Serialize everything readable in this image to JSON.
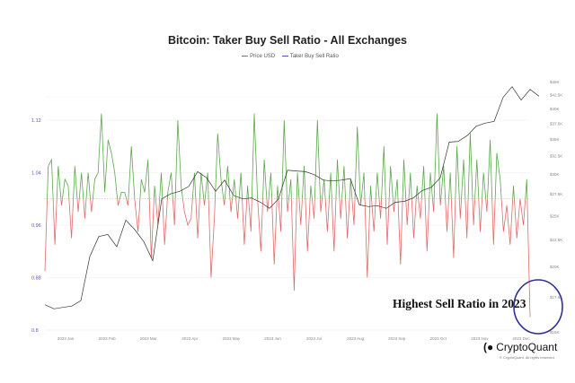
{
  "chart_data": {
    "type": "line",
    "title": "Bitcoin: Taker Buy Sell Ratio - All Exchanges",
    "legend": [
      "Price USD",
      "Taker Buy Sell Ratio"
    ],
    "legend_placement": "top-center",
    "x_tick_labels": [
      "2023 Jan",
      "2023 Feb",
      "2023 Mar",
      "2023 Apr",
      "2023 May",
      "2023 Jun",
      "2023 Jul",
      "2023 Aug",
      "2023 Sep",
      "2023 Oct",
      "2023 Nov",
      "2023 Dec"
    ],
    "left_axis": {
      "label": "Taker Buy Sell Ratio",
      "ticks": [
        "0.8",
        "0.88",
        "0.96",
        "1.04",
        "1.12"
      ],
      "ylim": [
        0.8,
        1.14
      ],
      "baseline": 1.0
    },
    "right_axis": {
      "label": "Price USD",
      "scale": "log",
      "ticks": [
        "$15K",
        "$17.5K",
        "$20K",
        "$22.5K",
        "$25K",
        "$27.5K",
        "$30K",
        "$32.5K",
        "$35K",
        "$37.5K",
        "$40K",
        "$42.5K",
        "$45K"
      ],
      "tick_values": [
        15,
        17.5,
        20,
        22.5,
        25,
        27.5,
        30,
        32.5,
        35,
        37.5,
        40,
        42.5,
        45
      ],
      "ylim_k": [
        15,
        45
      ]
    },
    "series": [
      {
        "name": "Price USD",
        "unit": "K USD",
        "color": "#333333",
        "values": [
          16.9,
          16.6,
          16.7,
          16.8,
          17.2,
          20.9,
          22.8,
          23.0,
          21.8,
          24.5,
          23.5,
          22.3,
          20.5,
          26.9,
          27.5,
          27.8,
          28.4,
          30.3,
          29.5,
          27.8,
          29.2,
          27.3,
          26.9,
          27.0,
          26.5,
          25.8,
          26.9,
          30.5,
          30.4,
          30.3,
          29.9,
          29.2,
          29.1,
          29.2,
          29.4,
          26.2,
          26.0,
          26.1,
          25.8,
          26.5,
          26.6,
          27.0,
          27.9,
          28.3,
          29.5,
          34.5,
          34.6,
          35.5,
          37.0,
          37.5,
          37.8,
          42.0,
          44.0,
          41.5,
          43.5,
          42.2
        ]
      },
      {
        "name": "Taker Buy Sell Ratio",
        "color_above": "#5aa84a",
        "color_below": "#e06a6a",
        "values": [
          0.89,
          1.05,
          1.06,
          0.93,
          1.05,
          0.99,
          1.03,
          1.02,
          0.94,
          1.05,
          0.98,
          1.04,
          0.97,
          1.04,
          0.98,
          1.03,
          1.04,
          1.13,
          1.01,
          1.09,
          1.07,
          1.04,
          0.99,
          1.01,
          1.01,
          0.99,
          1.08,
          1.0,
          0.95,
          1.03,
          1.01,
          1.06,
          0.91,
          1.02,
          0.96,
          1.04,
          0.93,
          1.01,
          1.04,
          0.96,
          1.12,
          1.02,
          0.98,
          0.96,
          0.97,
          1.04,
          0.94,
          1.04,
          0.99,
          1.04,
          0.88,
          0.97,
          1.1,
          1.03,
          0.99,
          1.05,
          0.98,
          1.03,
          0.97,
          1.04,
          0.93,
          1.02,
          0.95,
          1.13,
          1.0,
          0.92,
          1.06,
          0.98,
          1.04,
          0.9,
          1.02,
          0.95,
          1.12,
          0.98,
          1.03,
          0.86,
          1.04,
          0.96,
          1.05,
          0.92,
          1.02,
          0.97,
          1.12,
          0.98,
          1.03,
          0.95,
          1.04,
          0.92,
          1.06,
          0.97,
          1.05,
          0.94,
          1.03,
          0.96,
          1.11,
          0.99,
          1.04,
          0.88,
          1.02,
          0.95,
          1.04,
          0.97,
          1.08,
          0.93,
          1.05,
          0.98,
          1.03,
          0.9,
          1.06,
          0.96,
          1.04,
          0.94,
          1.02,
          0.97,
          1.05,
          0.92,
          1.04,
          0.98,
          1.13,
          0.99,
          1.05,
          0.95,
          1.04,
          0.91,
          1.08,
          0.97,
          1.06,
          0.94,
          1.1,
          0.96,
          1.06,
          0.95,
          1.04,
          0.98,
          1.09,
          0.93,
          1.07,
          1.03,
          0.95,
          0.99,
          0.93,
          1.02,
          0.94,
          1.0,
          0.96,
          1.03,
          0.82
        ]
      }
    ],
    "grid": true
  },
  "annotation": {
    "text": "Highest Sell Ratio in 2023",
    "circle_color": "#2f3199"
  },
  "branding": {
    "logo_text": "CryptoQuant",
    "copyright": "© CryptoQuant. All rights reserved."
  }
}
